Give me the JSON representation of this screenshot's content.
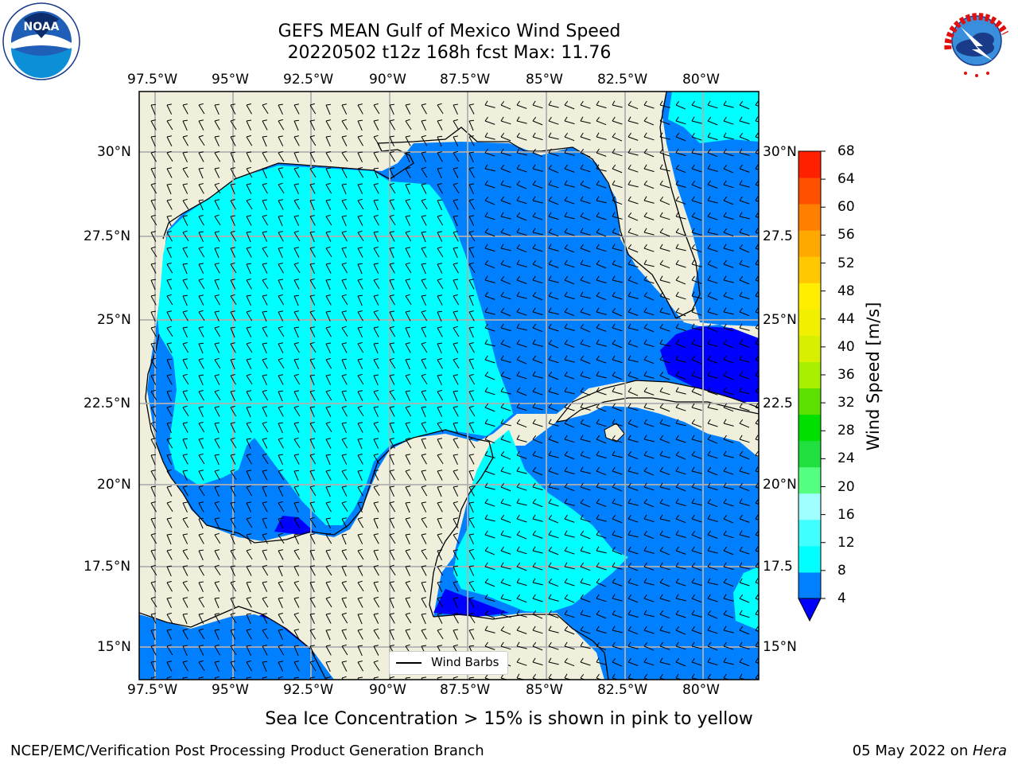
{
  "title": {
    "line1": "GEFS MEAN Gulf of Mexico Wind Speed",
    "line2": "20220502 t12z 168h fcst   Max: 11.76"
  },
  "lon_ticks": [
    "97.5°W",
    "95°W",
    "92.5°W",
    "90°W",
    "87.5°W",
    "85°W",
    "82.5°W",
    "80°W"
  ],
  "lat_ticks": [
    "30°N",
    "27.5°N",
    "25°N",
    "22.5°N",
    "20°N",
    "17.5°N",
    "15°N"
  ],
  "lat_ticks_right": [
    "30°N",
    "27.5",
    "25°N",
    "22.5",
    "20°N",
    "17.5",
    "15°N"
  ],
  "colorbar": {
    "label": "Wind Speed [m/s]",
    "ticks": [
      "4",
      "8",
      "12",
      "16",
      "20",
      "24",
      "28",
      "32",
      "36",
      "40",
      "44",
      "48",
      "52",
      "56",
      "60",
      "64",
      "68"
    ],
    "colors": [
      "#0080ff",
      "#00ffff",
      "#40ffff",
      "#a0ffff",
      "#55ff80",
      "#20e040",
      "#00e000",
      "#5ce000",
      "#a8f000",
      "#d8f000",
      "#f0f000",
      "#ffee00",
      "#ffc800",
      "#ffa800",
      "#ff8000",
      "#ff5000",
      "#ff2000"
    ],
    "extend_color": "#0000ff"
  },
  "legend": {
    "label": "Wind Barbs"
  },
  "colors": {
    "land": "#efefdc",
    "ocean_dark": "#0000ff",
    "ocean_mid": "#0080ff",
    "ocean_light": "#00ffff"
  },
  "notes": {
    "ice": "Sea Ice Concentration > 15% is shown in pink to yellow",
    "credit": "NCEP/EMC/Verification Post Processing Product Generation Branch",
    "date": "05 May 2022 on ",
    "system": "Hera"
  },
  "logos": {
    "left": "noaa-logo",
    "right": "nws-logo"
  }
}
